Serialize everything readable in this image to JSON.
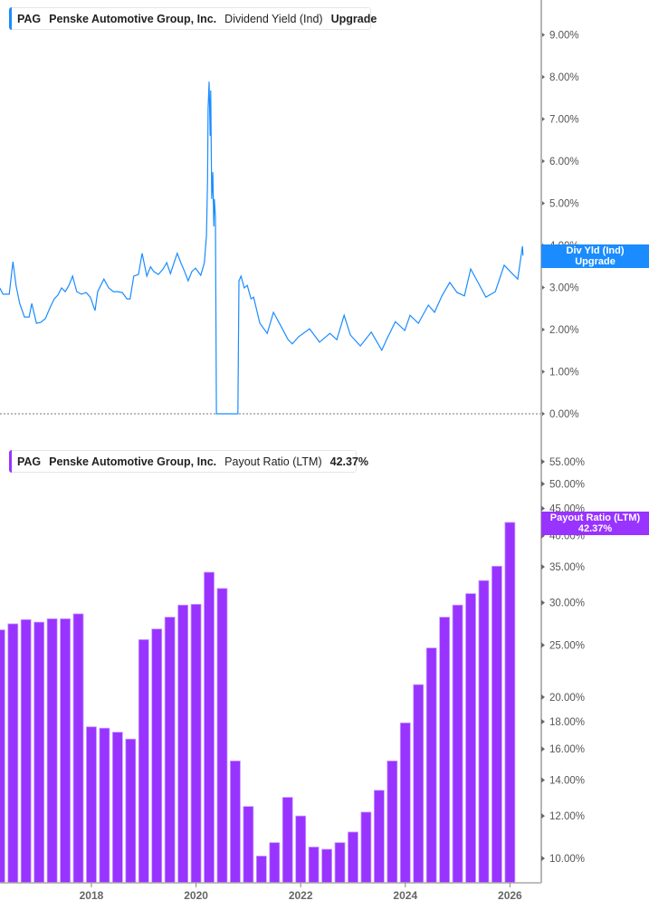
{
  "top_legend": {
    "ticker": "PAG",
    "company": "Penske Automotive Group, Inc.",
    "metric": "Dividend Yield (Ind)",
    "value": "Upgrade"
  },
  "top_tag": {
    "line1": "Div Yld (Ind)",
    "line2": "Upgrade"
  },
  "bottom_legend": {
    "ticker": "PAG",
    "company": "Penske Automotive Group, Inc.",
    "metric": "Payout Ratio (LTM)",
    "value": "42.37%"
  },
  "bottom_tag": {
    "line1": "Payout Ratio (LTM)",
    "line2": "42.37%"
  },
  "colors": {
    "yield_line": "#1a8cff",
    "payout_bar": "#9933ff"
  },
  "chart_data": [
    {
      "type": "line",
      "series_label": "Dividend Yield (Ind)",
      "y_scale": "linear",
      "ylim": [
        0,
        9
      ],
      "y_ticks": [
        "0.00%",
        "1.00%",
        "2.00%",
        "3.00%",
        "4.00%",
        "5.00%",
        "6.00%",
        "7.00%",
        "8.00%",
        "9.00%"
      ],
      "x_unit": "year",
      "x": [
        2016.25,
        2016.31,
        2016.43,
        2016.5,
        2016.56,
        2016.63,
        2016.72,
        2016.81,
        2016.86,
        2016.95,
        2017.03,
        2017.12,
        2017.21,
        2017.29,
        2017.36,
        2017.43,
        2017.5,
        2017.57,
        2017.64,
        2017.72,
        2017.81,
        2017.9,
        2017.98,
        2018.07,
        2018.12,
        2018.24,
        2018.33,
        2018.42,
        2018.5,
        2018.59,
        2018.68,
        2018.74,
        2018.81,
        2018.9,
        2018.97,
        2019.06,
        2019.13,
        2019.19,
        2019.28,
        2019.37,
        2019.44,
        2019.51,
        2019.58,
        2019.64,
        2019.71,
        2019.78,
        2019.85,
        2019.92,
        2019.99,
        2020.09,
        2020.16,
        2020.2,
        2020.22,
        2020.23,
        2020.25,
        2020.27,
        2020.28,
        2020.3,
        2020.32,
        2020.34,
        2020.35,
        2020.37,
        2020.39,
        2020.8,
        2020.82,
        2020.86,
        2020.92,
        2020.98,
        2021.05,
        2021.1,
        2021.22,
        2021.36,
        2021.48,
        2021.62,
        2021.76,
        2021.84,
        2021.96,
        2022.17,
        2022.36,
        2022.56,
        2022.69,
        2022.83,
        2022.95,
        2023.14,
        2023.35,
        2023.55,
        2023.64,
        2023.81,
        2023.99,
        2024.09,
        2024.25,
        2024.44,
        2024.56,
        2024.7,
        2024.85,
        2024.99,
        2025.13,
        2025.25,
        2025.39,
        2025.54,
        2025.72,
        2025.89,
        2026.06,
        2026.15,
        2026.24,
        2026.25
      ],
      "y": [
        2.99,
        2.84,
        2.84,
        3.61,
        3.05,
        2.62,
        2.3,
        2.3,
        2.62,
        2.15,
        2.17,
        2.26,
        2.52,
        2.73,
        2.82,
        2.99,
        2.9,
        3.05,
        3.27,
        2.9,
        2.84,
        2.88,
        2.77,
        2.45,
        2.9,
        3.2,
        2.99,
        2.9,
        2.9,
        2.88,
        2.73,
        2.73,
        3.27,
        3.31,
        3.81,
        3.27,
        3.49,
        3.38,
        3.31,
        3.44,
        3.59,
        3.33,
        3.59,
        3.81,
        3.59,
        3.38,
        3.16,
        3.38,
        3.46,
        3.29,
        3.59,
        4.24,
        5.53,
        7.25,
        7.89,
        6.6,
        7.68,
        5.1,
        5.74,
        4.45,
        5.1,
        4.67,
        0,
        0,
        3.16,
        3.27,
        2.99,
        3.05,
        2.73,
        2.77,
        2.15,
        1.91,
        2.41,
        2.09,
        1.76,
        1.66,
        1.83,
        2.02,
        1.7,
        1.91,
        1.76,
        2.34,
        1.87,
        1.61,
        1.94,
        1.51,
        1.76,
        2.19,
        1.98,
        2.34,
        2.15,
        2.58,
        2.41,
        2.8,
        3.12,
        2.88,
        2.8,
        3.44,
        3.12,
        2.77,
        2.9,
        3.53,
        3.31,
        3.2,
        3.98,
        3.76
      ]
    },
    {
      "type": "bar",
      "series_label": "Payout Ratio (LTM)",
      "y_scale": "log",
      "ylim": [
        9,
        58
      ],
      "y_tick_values": [
        55,
        50,
        45,
        40,
        35,
        30,
        25,
        20,
        18,
        16,
        14,
        12,
        10
      ],
      "y_ticks": [
        "55.00%",
        "50.00%",
        "45.00%",
        "40.00%",
        "35.00%",
        "30.00%",
        "25.00%",
        "20.00%",
        "18.00%",
        "16.00%",
        "14.00%",
        "12.00%",
        "10.00%"
      ],
      "x_ticks": [
        "2018",
        "2020",
        "2022",
        "2024",
        "2026"
      ],
      "categories": [
        "2016-03-31",
        "2016-06-30",
        "2016-09-30",
        "2016-12-31",
        "2017-03-31",
        "2017-06-30",
        "2017-09-30",
        "2017-12-31",
        "2018-03-31",
        "2018-06-30",
        "2018-09-30",
        "2018-12-31",
        "2019-03-31",
        "2019-06-30",
        "2019-09-30",
        "2019-12-31",
        "2020-03-31",
        "2020-06-30",
        "2020-09-30",
        "2020-12-31",
        "2021-03-31",
        "2021-06-30",
        "2021-09-30",
        "2021-12-31",
        "2022-03-31",
        "2022-06-30",
        "2022-09-30",
        "2022-12-31",
        "2023-03-31",
        "2023-06-30",
        "2023-09-30",
        "2023-12-31",
        "2024-03-31",
        "2024-06-30",
        "2024-09-30",
        "2024-12-31",
        "2025-03-31",
        "2025-06-30",
        "2025-09-30",
        "2025-12-31"
      ],
      "values": [
        26.7,
        27.4,
        27.9,
        27.6,
        28.0,
        28.0,
        28.6,
        17.6,
        17.5,
        17.2,
        16.7,
        25.6,
        26.8,
        28.2,
        29.7,
        29.8,
        34.2,
        31.9,
        15.2,
        12.5,
        10.1,
        10.7,
        13.0,
        12.0,
        10.5,
        10.4,
        10.7,
        11.2,
        12.2,
        13.4,
        15.2,
        17.9,
        21.1,
        24.7,
        28.2,
        29.7,
        31.2,
        33.0,
        35.1,
        42.37
      ]
    }
  ]
}
